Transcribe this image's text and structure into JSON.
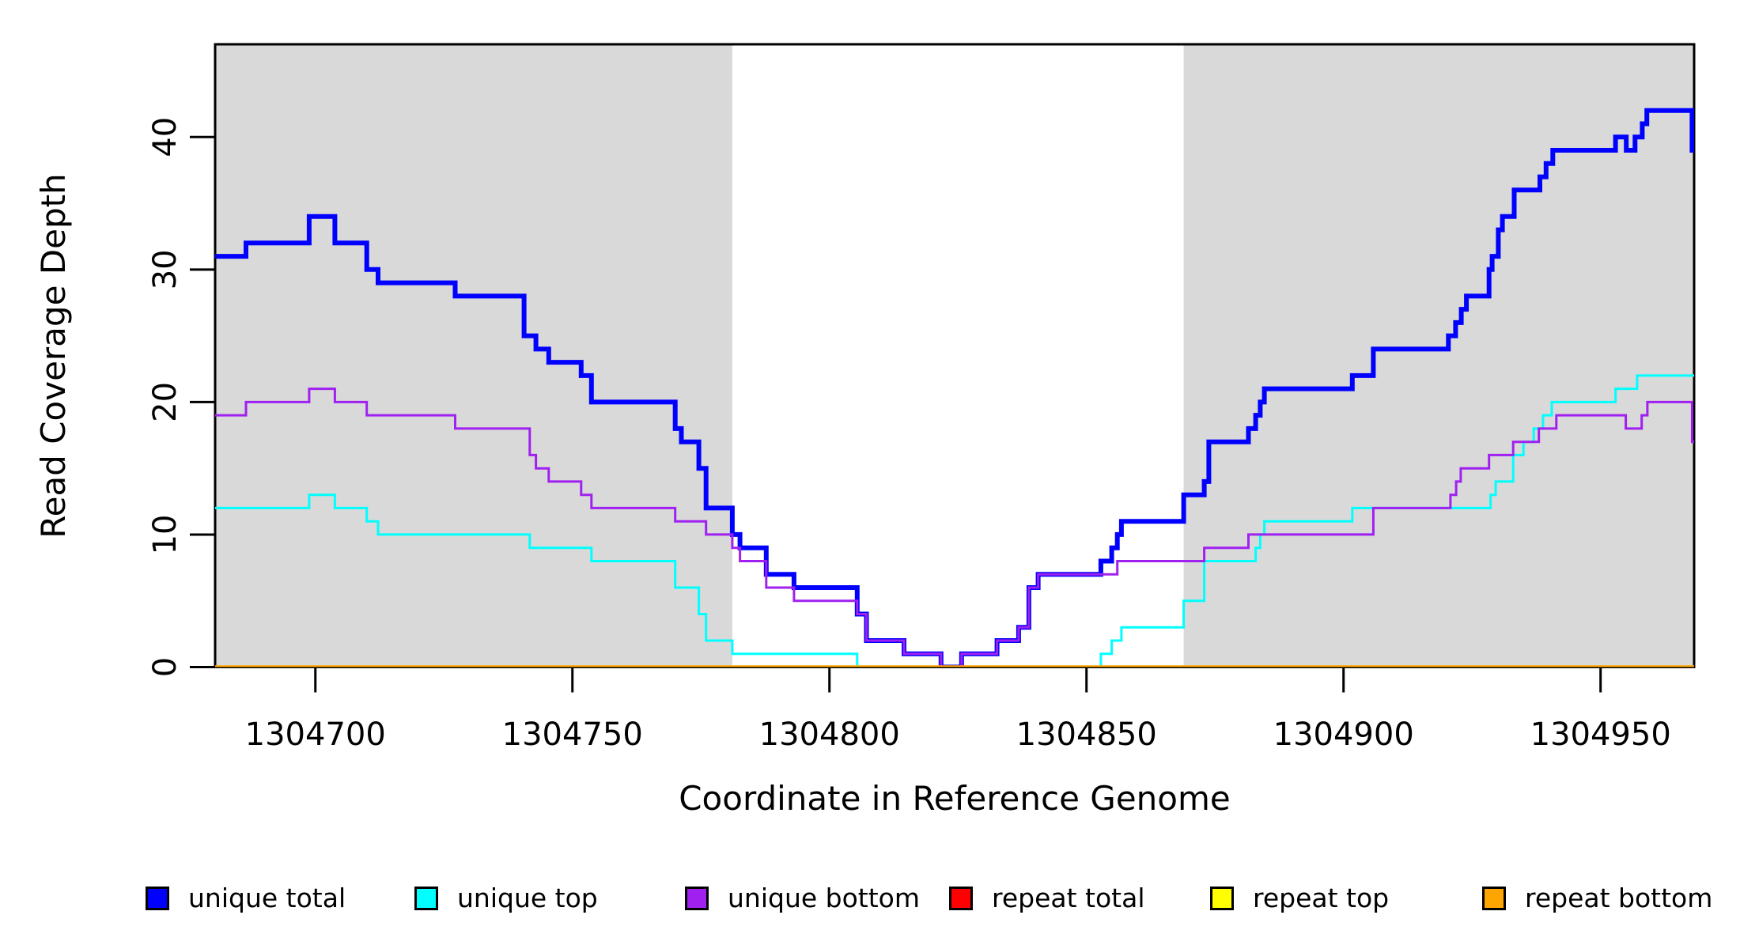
{
  "chart_data": {
    "type": "line",
    "subtype": "step-after",
    "title": "",
    "xlabel": "Coordinate in Reference Genome",
    "ylabel": "Read Coverage Depth",
    "xlim": [
      1304680.5,
      1304968.2
    ],
    "ylim": [
      0,
      47
    ],
    "grid": false,
    "legend_position": "bottom",
    "x_ticks": [
      1304700,
      1304750,
      1304800,
      1304850,
      1304900,
      1304950
    ],
    "x_tick_labels": [
      "1304700",
      "1304750",
      "1304800",
      "1304850",
      "1304900",
      "1304950"
    ],
    "y_ticks": [
      0,
      10,
      20,
      30,
      40
    ],
    "y_tick_labels": [
      "0",
      "10",
      "20",
      "30",
      "40"
    ],
    "shaded_regions": [
      {
        "x0": 1304680.5,
        "x1": 1304781.1,
        "color": "#D9D9D9",
        "meaning": "repeat-masked flank"
      },
      {
        "x0": 1304868.9,
        "x1": 1304968.2,
        "color": "#D9D9D9",
        "meaning": "repeat-masked flank"
      }
    ],
    "series": [
      {
        "name": "unique total",
        "color": "#0000FF",
        "width": 6,
        "points": [
          [
            1304680.5,
            31
          ],
          [
            1304686.5,
            32
          ],
          [
            1304698.8,
            34
          ],
          [
            1304703.8,
            32
          ],
          [
            1304710.0,
            30
          ],
          [
            1304712.2,
            29
          ],
          [
            1304727.2,
            28
          ],
          [
            1304740.6,
            25
          ],
          [
            1304742.9,
            24
          ],
          [
            1304745.4,
            23
          ],
          [
            1304751.7,
            22
          ],
          [
            1304753.7,
            20
          ],
          [
            1304770.0,
            18
          ],
          [
            1304771.2,
            17
          ],
          [
            1304774.6,
            15
          ],
          [
            1304776.0,
            12
          ],
          [
            1304781.1,
            10
          ],
          [
            1304782.6,
            9
          ],
          [
            1304787.7,
            7
          ],
          [
            1304793.1,
            6
          ],
          [
            1304805.4,
            4
          ],
          [
            1304807.2,
            2
          ],
          [
            1304814.5,
            1
          ],
          [
            1304821.7,
            0
          ],
          [
            1304825.7,
            1
          ],
          [
            1304832.6,
            2
          ],
          [
            1304836.8,
            3
          ],
          [
            1304838.8,
            6
          ],
          [
            1304840.6,
            7
          ],
          [
            1304852.8,
            8
          ],
          [
            1304854.9,
            9
          ],
          [
            1304856.0,
            10
          ],
          [
            1304856.8,
            11
          ],
          [
            1304868.9,
            13
          ],
          [
            1304872.9,
            14
          ],
          [
            1304873.8,
            17
          ],
          [
            1304881.5,
            18
          ],
          [
            1304882.9,
            19
          ],
          [
            1304883.8,
            20
          ],
          [
            1304884.6,
            21
          ],
          [
            1304901.7,
            22
          ],
          [
            1304905.8,
            24
          ],
          [
            1304920.4,
            25
          ],
          [
            1304921.8,
            26
          ],
          [
            1304922.9,
            27
          ],
          [
            1304923.9,
            28
          ],
          [
            1304928.3,
            30
          ],
          [
            1304928.9,
            31
          ],
          [
            1304930.1,
            33
          ],
          [
            1304930.9,
            34
          ],
          [
            1304933.2,
            36
          ],
          [
            1304938.2,
            37
          ],
          [
            1304939.4,
            38
          ],
          [
            1304940.7,
            39
          ],
          [
            1304952.9,
            40
          ],
          [
            1304955.0,
            39
          ],
          [
            1304956.7,
            40
          ],
          [
            1304958.1,
            41
          ],
          [
            1304959.0,
            42
          ],
          [
            1304967.8,
            39
          ],
          [
            1304968.2,
            39
          ]
        ]
      },
      {
        "name": "unique top",
        "color": "#00FFFF",
        "width": 3,
        "points": [
          [
            1304680.5,
            12
          ],
          [
            1304698.8,
            13
          ],
          [
            1304703.8,
            12
          ],
          [
            1304710.0,
            11
          ],
          [
            1304712.2,
            10
          ],
          [
            1304741.7,
            9
          ],
          [
            1304753.7,
            8
          ],
          [
            1304770.0,
            6
          ],
          [
            1304774.6,
            4
          ],
          [
            1304776.0,
            2
          ],
          [
            1304781.1,
            1
          ],
          [
            1304805.4,
            0
          ],
          [
            1304852.8,
            1
          ],
          [
            1304854.9,
            2
          ],
          [
            1304856.8,
            3
          ],
          [
            1304868.9,
            5
          ],
          [
            1304872.9,
            8
          ],
          [
            1304882.9,
            9
          ],
          [
            1304883.8,
            10
          ],
          [
            1304884.6,
            11
          ],
          [
            1304901.7,
            12
          ],
          [
            1304928.6,
            13
          ],
          [
            1304929.6,
            14
          ],
          [
            1304933.0,
            16
          ],
          [
            1304935.0,
            17
          ],
          [
            1304937.0,
            18
          ],
          [
            1304938.8,
            19
          ],
          [
            1304940.5,
            20
          ],
          [
            1304952.9,
            21
          ],
          [
            1304957.1,
            22
          ],
          [
            1304968.2,
            22
          ]
        ]
      },
      {
        "name": "unique bottom",
        "color": "#A020F0",
        "width": 3,
        "points": [
          [
            1304680.5,
            19
          ],
          [
            1304686.5,
            20
          ],
          [
            1304698.8,
            21
          ],
          [
            1304703.8,
            20
          ],
          [
            1304710.0,
            19
          ],
          [
            1304727.2,
            18
          ],
          [
            1304741.7,
            16
          ],
          [
            1304742.9,
            15
          ],
          [
            1304745.4,
            14
          ],
          [
            1304751.7,
            13
          ],
          [
            1304753.7,
            12
          ],
          [
            1304770.0,
            11
          ],
          [
            1304776.0,
            10
          ],
          [
            1304781.1,
            9
          ],
          [
            1304782.6,
            8
          ],
          [
            1304787.7,
            6
          ],
          [
            1304793.1,
            5
          ],
          [
            1304805.4,
            4
          ],
          [
            1304807.2,
            2
          ],
          [
            1304814.5,
            1
          ],
          [
            1304821.7,
            0
          ],
          [
            1304825.7,
            1
          ],
          [
            1304832.6,
            2
          ],
          [
            1304836.8,
            3
          ],
          [
            1304838.8,
            6
          ],
          [
            1304840.6,
            7
          ],
          [
            1304856.0,
            8
          ],
          [
            1304872.9,
            9
          ],
          [
            1304881.5,
            10
          ],
          [
            1304905.8,
            12
          ],
          [
            1304920.8,
            13
          ],
          [
            1304921.9,
            14
          ],
          [
            1304922.8,
            15
          ],
          [
            1304928.3,
            16
          ],
          [
            1304933.0,
            17
          ],
          [
            1304938.0,
            18
          ],
          [
            1304941.4,
            19
          ],
          [
            1304954.9,
            18
          ],
          [
            1304958.0,
            19
          ],
          [
            1304959.1,
            20
          ],
          [
            1304967.8,
            17
          ],
          [
            1304968.2,
            17
          ]
        ]
      },
      {
        "name": "repeat total",
        "color": "#FF0000",
        "width": 3,
        "points": [
          [
            1304680.5,
            0
          ],
          [
            1304968.2,
            0
          ]
        ]
      },
      {
        "name": "repeat top",
        "color": "#FFFF00",
        "width": 3,
        "points": [
          [
            1304680.5,
            0
          ],
          [
            1304968.2,
            0
          ]
        ]
      },
      {
        "name": "repeat bottom",
        "color": "#FFA500",
        "width": 4.5,
        "points": [
          [
            1304680.5,
            0
          ],
          [
            1304968.2,
            0
          ]
        ]
      }
    ]
  },
  "legend": {
    "items": [
      {
        "label": "unique total",
        "color": "#0000FF"
      },
      {
        "label": "unique top",
        "color": "#00FFFF"
      },
      {
        "label": "unique bottom",
        "color": "#A020F0"
      },
      {
        "label": "repeat total",
        "color": "#FF0000"
      },
      {
        "label": "repeat top",
        "color": "#FFFF00"
      },
      {
        "label": "repeat bottom",
        "color": "#FFA500"
      }
    ]
  }
}
